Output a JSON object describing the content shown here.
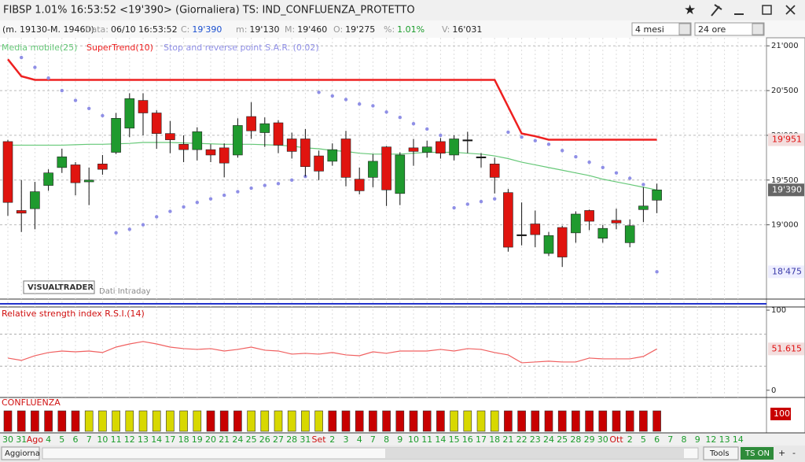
{
  "window": {
    "title": "FIBSP 1.01% 16:53:52 <19'390> (Giornaliera) TS: IND_CONFLUENZA_PROTETTO"
  },
  "info_bar": {
    "range": "(m. 19130-M. 19460)",
    "items": [
      {
        "label": "Data:",
        "value": "06/10 16:53:52"
      },
      {
        "label": "C:",
        "value": "19'390"
      },
      {
        "label": "m:",
        "value": "19'130"
      },
      {
        "label": "M:",
        "value": "19'460"
      },
      {
        "label": "O:",
        "value": "19'275"
      },
      {
        "label": "%:",
        "value": "1.01%"
      },
      {
        "label": "V:",
        "value": "16'031"
      }
    ],
    "period": "4 mesi",
    "interval": "24 ore"
  },
  "watermark": {
    "brand": "VISUALTRADER",
    "note": "Dati Intraday"
  },
  "toolbar": {
    "refresh": "Aggiorna",
    "tools": "Tools",
    "ts": "TS ON",
    "plus": "+",
    "minus": "-"
  },
  "chart_data": [
    {
      "type": "candlestick",
      "categories": [
        "30",
        "31",
        "Ago",
        "4",
        "5",
        "6",
        "7",
        "10",
        "11",
        "12",
        "13",
        "14",
        "17",
        "18",
        "19",
        "20",
        "21",
        "24",
        "25",
        "26",
        "27",
        "28",
        "31",
        "Set",
        "2",
        "3",
        "4",
        "7",
        "8",
        "9",
        "10",
        "11",
        "14",
        "15",
        "16",
        "17",
        "18",
        "21",
        "22",
        "23",
        "24",
        "25",
        "28",
        "29",
        "30",
        "Ott",
        "2",
        "5",
        "6",
        "7",
        "8",
        "9",
        "12",
        "13",
        "14"
      ],
      "open": [
        19930,
        19160,
        19180,
        19440,
        19640,
        19670,
        19480,
        19680,
        19810,
        20080,
        20390,
        20250,
        20020,
        19900,
        19840,
        19840,
        19860,
        19780,
        20210,
        20030,
        20140,
        19960,
        19960,
        19770,
        19710,
        19960,
        19510,
        19530,
        19870,
        19350,
        19860,
        19810,
        19930,
        19780,
        19950,
        19760,
        19680,
        19360,
        18890,
        19010,
        18680,
        18970,
        18910,
        19160,
        18850,
        19050,
        18800,
        19170,
        19275,
        null,
        null,
        null,
        null,
        null,
        null
      ],
      "high": [
        19950,
        19500,
        19480,
        19620,
        19850,
        19700,
        19640,
        19780,
        20250,
        20470,
        20470,
        20280,
        20160,
        20000,
        20090,
        19900,
        19910,
        20190,
        20370,
        20200,
        20170,
        20030,
        20070,
        19830,
        19910,
        20050,
        19640,
        19790,
        19880,
        19810,
        19960,
        19940,
        19970,
        20000,
        20040,
        19800,
        19750,
        19400,
        19250,
        19160,
        18920,
        18990,
        19150,
        19170,
        19000,
        19180,
        19060,
        19420,
        19460,
        null,
        null,
        null,
        null,
        null,
        null
      ],
      "low": [
        19100,
        18920,
        18950,
        19380,
        19580,
        19330,
        19220,
        19560,
        19790,
        19980,
        20000,
        19850,
        19800,
        19700,
        19720,
        19700,
        19530,
        19750,
        19960,
        19870,
        19800,
        19740,
        19540,
        19500,
        19660,
        19430,
        19340,
        19420,
        19210,
        19220,
        19660,
        19750,
        19740,
        19720,
        19800,
        19640,
        19350,
        18700,
        18770,
        18750,
        18650,
        18530,
        18800,
        18940,
        18800,
        18950,
        18750,
        19030,
        19130,
        null,
        null,
        null,
        null,
        null,
        null
      ],
      "close": [
        19250,
        19130,
        19370,
        19580,
        19760,
        19470,
        19500,
        19620,
        20190,
        20410,
        20250,
        20020,
        19950,
        19840,
        20040,
        19780,
        19690,
        20110,
        20050,
        20130,
        19890,
        19820,
        19650,
        19600,
        19840,
        19530,
        19380,
        19710,
        19390,
        19780,
        19820,
        19870,
        19800,
        19960,
        19950,
        19760,
        19530,
        18750,
        18890,
        18890,
        18880,
        18640,
        19120,
        19040,
        18960,
        19020,
        18990,
        19210,
        19390,
        null,
        null,
        null,
        null,
        null,
        null
      ],
      "last_label": "19'390",
      "up_color": "#1f9a2e",
      "down_color": "#e0140f",
      "doji_color": "#111111",
      "overlays": [
        {
          "name": "Media mobile(25)",
          "type": "line",
          "color": "#66c878",
          "values": [
            19890,
            19890,
            19890,
            19890,
            19890,
            19895,
            19900,
            19900,
            19905,
            19910,
            19920,
            19920,
            19920,
            19915,
            19910,
            19905,
            19900,
            19900,
            19900,
            19895,
            19890,
            19880,
            19860,
            19850,
            19830,
            19820,
            19800,
            19790,
            19790,
            19790,
            19800,
            19810,
            19810,
            19810,
            19800,
            19790,
            19770,
            19740,
            19700,
            19670,
            19640,
            19610,
            19580,
            19550,
            19510,
            19480,
            19450,
            19420,
            19390,
            null,
            null,
            null,
            null,
            null,
            null
          ]
        },
        {
          "name": "SuperTrend(10)",
          "type": "line",
          "color": "#ee2020",
          "values": [
            20850,
            20660,
            20620,
            20620,
            20620,
            20620,
            20620,
            20620,
            20620,
            20620,
            20620,
            20620,
            20620,
            20620,
            20620,
            20620,
            20620,
            20620,
            20620,
            20620,
            20620,
            20620,
            20620,
            20620,
            20620,
            20620,
            20620,
            20620,
            20620,
            20620,
            20620,
            20620,
            20620,
            20620,
            20620,
            20620,
            20620,
            20320,
            20020,
            19990,
            19951,
            19951,
            19951,
            19951,
            19951,
            19951,
            19951,
            19951,
            19951,
            null,
            null,
            null,
            null,
            null,
            null
          ],
          "last_label": "19'951"
        },
        {
          "name": "Stop and reverse point S.A.R. (0.02)",
          "type": "dots",
          "color": "#8f8fe6",
          "values": [
            null,
            20870,
            20760,
            20640,
            20500,
            20390,
            20300,
            20220,
            18910,
            18950,
            19000,
            19090,
            19150,
            19200,
            19250,
            19290,
            19330,
            19370,
            19410,
            19440,
            19460,
            19500,
            19540,
            20480,
            20440,
            20400,
            20350,
            20330,
            20260,
            20200,
            20130,
            20070,
            20000,
            19190,
            19230,
            19260,
            19290,
            20035,
            19980,
            19940,
            19900,
            19830,
            19760,
            19700,
            19640,
            19580,
            19520,
            19450,
            18475,
            null,
            null,
            null,
            null,
            null,
            null
          ],
          "last_label": "18'475"
        }
      ],
      "ylim": [
        18170,
        21090
      ],
      "yticks": [
        {
          "value": 21000,
          "label": "21'000"
        },
        {
          "value": 20500,
          "label": "20'500"
        },
        {
          "value": 20000,
          "label": "20'000"
        },
        {
          "value": 19500,
          "label": "19'500"
        },
        {
          "value": 19000,
          "label": "19'000"
        }
      ],
      "grid": true
    },
    {
      "type": "line",
      "title": "Relative strength index R.S.I.(14)",
      "color": "#f06060",
      "values": [
        40.2,
        37.3,
        43.1,
        47.1,
        49.0,
        48.0,
        49.0,
        47.1,
        53.9,
        57.8,
        60.8,
        57.8,
        53.9,
        52.0,
        51.0,
        52.0,
        49.0,
        51.0,
        53.9,
        50.0,
        49.0,
        45.1,
        46.1,
        45.1,
        47.1,
        44.1,
        43.1,
        48.0,
        46.1,
        49.0,
        49.0,
        49.0,
        51.0,
        49.0,
        52.0,
        51.0,
        47.1,
        44.1,
        34.3,
        35.3,
        36.3,
        35.3,
        35.3,
        40.2,
        39.2,
        39.2,
        39.2,
        42.2,
        51.615
      ],
      "ylim": [
        -9,
        104
      ],
      "yticks": [
        0,
        100
      ],
      "levels": [
        30,
        70
      ]
    },
    {
      "type": "bar",
      "title": "CONFLUENZA",
      "values": [
        100,
        100,
        100,
        100,
        100,
        100,
        100,
        100,
        100,
        100,
        100,
        100,
        100,
        100,
        100,
        100,
        100,
        100,
        100,
        100,
        100,
        100,
        100,
        100,
        100,
        100,
        100,
        100,
        100,
        100,
        100,
        100,
        100,
        100,
        100,
        100,
        100,
        100,
        100,
        100,
        100,
        100,
        100,
        100,
        100,
        100,
        100,
        100,
        100
      ],
      "colors": [
        "#c80000",
        "#c80000",
        "#c80000",
        "#c80000",
        "#c80000",
        "#c80000",
        "#d8d800",
        "#d8d800",
        "#d8d800",
        "#d8d800",
        "#d8d800",
        "#d8d800",
        "#d8d800",
        "#d8d800",
        "#d8d800",
        "#c80000",
        "#c80000",
        "#c80000",
        "#d8d800",
        "#d8d800",
        "#d8d800",
        "#d8d800",
        "#d8d800",
        "#d8d800",
        "#c80000",
        "#c80000",
        "#c80000",
        "#c80000",
        "#c80000",
        "#c80000",
        "#c80000",
        "#c80000",
        "#c80000",
        "#d8d800",
        "#d8d800",
        "#d8d800",
        "#d8d800",
        "#c80000",
        "#c80000",
        "#c80000",
        "#c80000",
        "#c80000",
        "#c80000",
        "#c80000",
        "#c80000",
        "#c80000",
        "#c80000",
        "#c80000",
        "#c80000"
      ],
      "ylim": [
        0,
        100
      ]
    }
  ]
}
